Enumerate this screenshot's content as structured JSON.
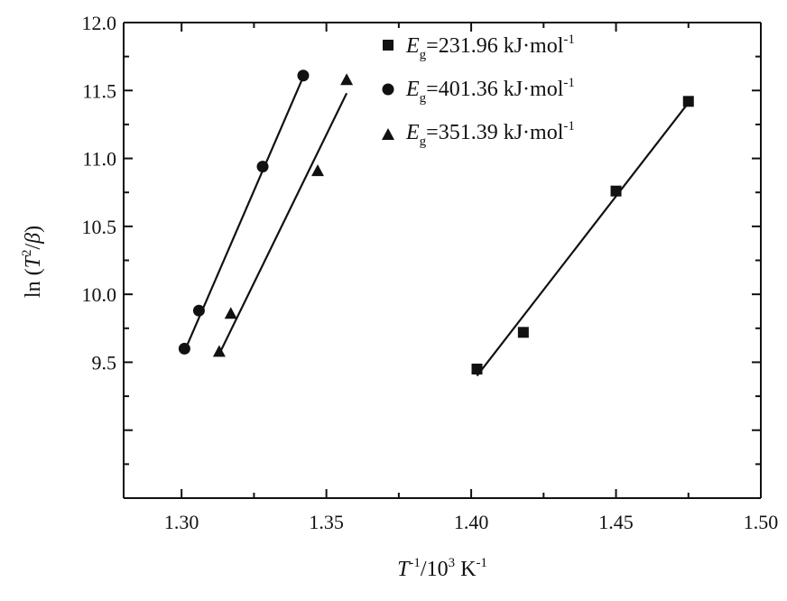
{
  "chart_data": {
    "type": "scatter",
    "xlabel": {
      "base": "T",
      "sup1": "-1",
      "mid": "/10",
      "sup2": "3",
      "unit": " K",
      "sup3": "-1"
    },
    "ylabel": {
      "pre": "ln (",
      "T": "T",
      "sup": "2",
      "post1": "/",
      "beta": "β",
      "post2": ")"
    },
    "xlim": [
      1.28,
      1.5
    ],
    "ylim": [
      8.5,
      12.0
    ],
    "xticks": [
      "1.30",
      "1.35",
      "1.40",
      "1.45",
      "1.50"
    ],
    "yticks": [
      "9.5",
      "10.0",
      "10.5",
      "11.0",
      "11.5",
      "12.0"
    ],
    "legend_position": "top-center",
    "series": [
      {
        "name": {
          "E": "E",
          "sub": "g",
          "rest": "=231.96 kJ·mol",
          "sup": "-1"
        },
        "marker": "square",
        "x": [
          1.402,
          1.418,
          1.45,
          1.475
        ],
        "y": [
          9.45,
          9.72,
          10.76,
          11.42
        ],
        "fit": [
          [
            1.402,
            9.4
          ],
          [
            1.475,
            11.41
          ]
        ]
      },
      {
        "name": {
          "E": "E",
          "sub": "g",
          "rest": "=401.36 kJ·mol",
          "sup": "-1"
        },
        "marker": "circle",
        "x": [
          1.301,
          1.306,
          1.328,
          1.342
        ],
        "y": [
          9.6,
          9.88,
          10.94,
          11.61
        ],
        "fit": [
          [
            1.301,
            9.58
          ],
          [
            1.342,
            11.6
          ]
        ]
      },
      {
        "name": {
          "E": "E",
          "sub": "g",
          "rest": "=351.39 kJ·mol",
          "sup": "-1"
        },
        "marker": "triangle",
        "x": [
          1.313,
          1.317,
          1.347,
          1.357
        ],
        "y": [
          9.58,
          9.86,
          10.91,
          11.58
        ],
        "fit": [
          [
            1.313,
            9.56
          ],
          [
            1.357,
            11.48
          ]
        ]
      }
    ]
  }
}
